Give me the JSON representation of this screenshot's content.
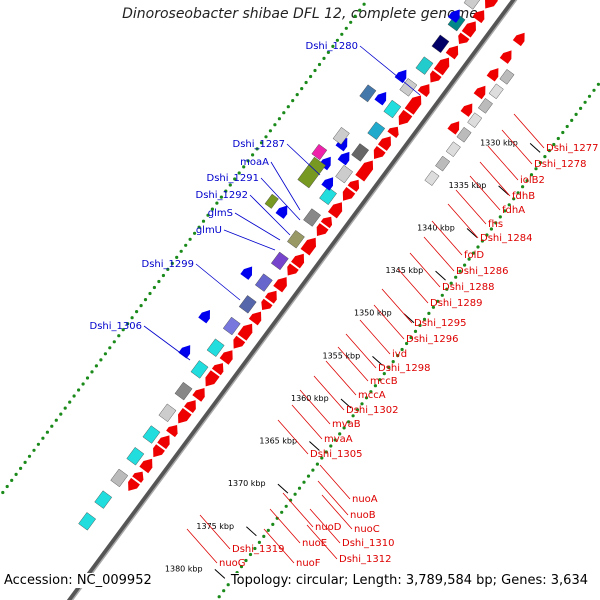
{
  "title": "Dinoroseobacter shibae DFL 12, complete genome",
  "footer": {
    "accession": "Accession: NC_009952",
    "topology": "Topology: circular; Length: 3,789,584 bp; Genes: 3,634"
  },
  "colors": {
    "backbone": "#888888",
    "gc_dots": "#1a8a1a",
    "blue_label": "#0000cc",
    "red_label": "#dd0000"
  },
  "ticks": [
    "1330 kbp",
    "1335 kbp",
    "1340 kbp",
    "1345 kbp",
    "1350 kbp",
    "1355 kbp",
    "1360 kbp",
    "1365 kbp",
    "1370 kbp",
    "1375 kbp",
    "1380 kbp"
  ],
  "labels_left": [
    "Dshi_1280",
    "Dshi_1287",
    "moaA",
    "Dshi_1291",
    "Dshi_1292",
    "glmS",
    "glmU",
    "Dshi_1299",
    "Dshi_1306"
  ],
  "labels_right": [
    "Dshi_1277",
    "Dshi_1278",
    "iolB2",
    "fdhB",
    "fdhA",
    "fhs",
    "Dshi_1284",
    "folD",
    "Dshi_1286",
    "Dshi_1288",
    "Dshi_1289",
    "Dshi_1295",
    "Dshi_1296",
    "ivd",
    "Dshi_1298",
    "mccB",
    "mccA",
    "Dshi_1302",
    "mvaB",
    "mvaA",
    "Dshi_1305",
    "nuoA",
    "nuoB",
    "nuoC",
    "Dshi_1310",
    "nuoD",
    "nuoE",
    "Dshi_1312",
    "Dshi_1319",
    "nuoF",
    "nuoG"
  ]
}
